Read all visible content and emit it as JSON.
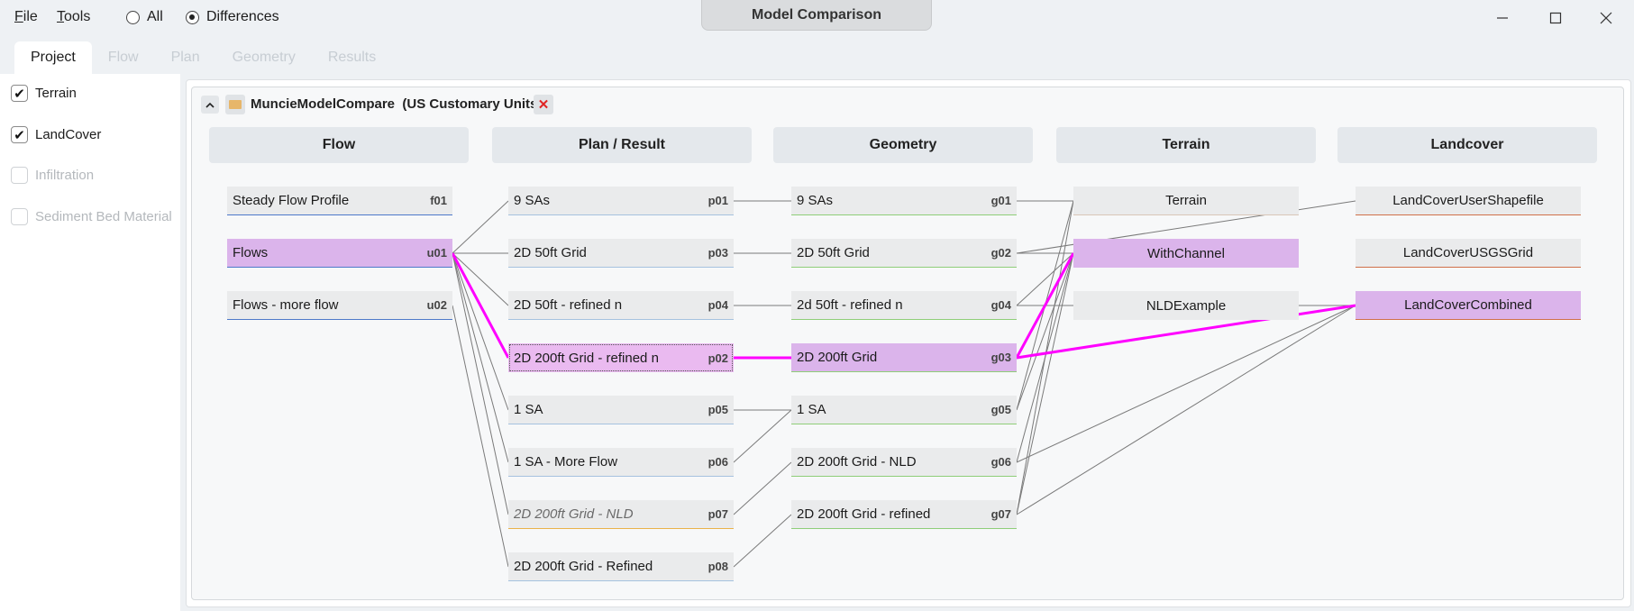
{
  "window": {
    "title": "Model Comparison",
    "menu": {
      "file": "File",
      "tools": "Tools"
    },
    "filter": {
      "all": "All",
      "differences": "Differences",
      "selected": "differences"
    }
  },
  "tabs": [
    "Project",
    "Flow",
    "Plan",
    "Geometry",
    "Results"
  ],
  "sidebar": {
    "items": [
      {
        "label": "Terrain",
        "checked": true,
        "enabled": true
      },
      {
        "label": "LandCover",
        "checked": true,
        "enabled": true
      },
      {
        "label": "Infiltration",
        "checked": false,
        "enabled": false
      },
      {
        "label": "Sediment Bed Material",
        "checked": false,
        "enabled": false
      }
    ]
  },
  "project": {
    "name": "MuncieModelCompare",
    "units": "(US Customary Units)"
  },
  "columns": [
    "Flow",
    "Plan / Result",
    "Geometry",
    "Terrain",
    "Landcover"
  ],
  "flow": [
    {
      "label": "Steady Flow Profile",
      "id": "f01"
    },
    {
      "label": "Flows",
      "id": "u01"
    },
    {
      "label": "Flows - more flow",
      "id": "u02"
    }
  ],
  "plans": [
    {
      "label": "9 SAs",
      "id": "p01"
    },
    {
      "label": "2D 50ft Grid",
      "id": "p03"
    },
    {
      "label": "2D 50ft - refined n",
      "id": "p04"
    },
    {
      "label": "2D 200ft Grid - refined n",
      "id": "p02"
    },
    {
      "label": "1 SA",
      "id": "p05"
    },
    {
      "label": "1 SA - More Flow",
      "id": "p06"
    },
    {
      "label": "2D 200ft Grid - NLD",
      "id": "p07"
    },
    {
      "label": "2D 200ft Grid - Refined",
      "id": "p08"
    }
  ],
  "geometry": [
    {
      "label": "9 SAs",
      "id": "g01"
    },
    {
      "label": "2D 50ft Grid",
      "id": "g02"
    },
    {
      "label": "2d 50ft - refined n",
      "id": "g04"
    },
    {
      "label": "2D 200ft Grid",
      "id": "g03"
    },
    {
      "label": "1 SA",
      "id": "g05"
    },
    {
      "label": "2D 200ft Grid - NLD",
      "id": "g06"
    },
    {
      "label": "2D 200ft Grid - refined",
      "id": "g07"
    }
  ],
  "terrain": [
    {
      "label": "Terrain"
    },
    {
      "label": "WithChannel"
    },
    {
      "label": "NLDExample"
    }
  ],
  "landcover": [
    {
      "label": "LandCoverUserShapefile"
    },
    {
      "label": "LandCoverUSGSGrid"
    },
    {
      "label": "LandCoverCombined"
    }
  ],
  "colors": {
    "highlight": "#dbb4eb",
    "selected_path": "#ff00ff",
    "link": "#7a7a7a"
  }
}
